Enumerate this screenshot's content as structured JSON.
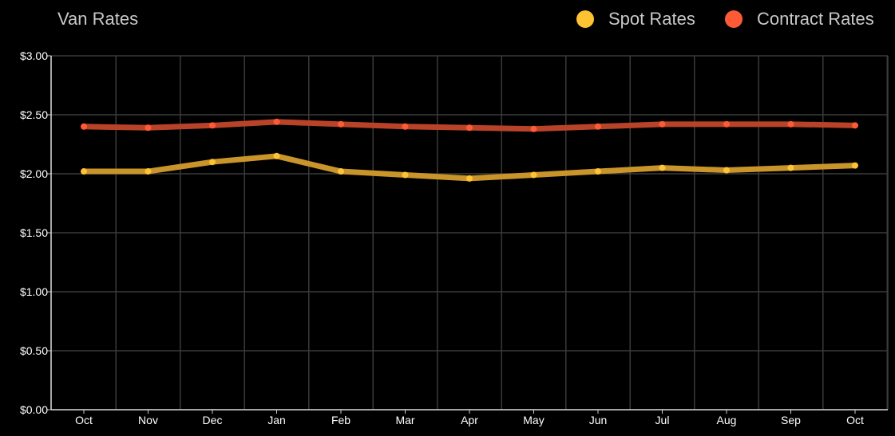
{
  "chart_data": {
    "type": "line",
    "title": "Van Rates",
    "xlabel": "",
    "ylabel": "",
    "categories": [
      "Oct",
      "Nov",
      "Dec",
      "Jan",
      "Feb",
      "Mar",
      "Apr",
      "May",
      "Jun",
      "Jul",
      "Aug",
      "Sep",
      "Oct"
    ],
    "ylim": [
      0,
      3
    ],
    "yticks": [
      "$0.00",
      "$0.50",
      "$1.00",
      "$1.50",
      "$2.00",
      "$2.50",
      "$3.00"
    ],
    "grid": true,
    "legend_position": "top-right",
    "series": [
      {
        "name": "Spot Rates",
        "color": "#ffc233",
        "line_color": "#c9952a",
        "values": [
          2.02,
          2.02,
          2.1,
          2.15,
          2.02,
          1.99,
          1.96,
          1.99,
          2.02,
          2.05,
          2.03,
          2.05,
          2.07
        ]
      },
      {
        "name": "Contract Rates",
        "color": "#ff5a36",
        "line_color": "#b94329",
        "values": [
          2.4,
          2.39,
          2.41,
          2.44,
          2.42,
          2.4,
          2.39,
          2.38,
          2.4,
          2.42,
          2.42,
          2.42,
          2.41
        ]
      }
    ]
  }
}
